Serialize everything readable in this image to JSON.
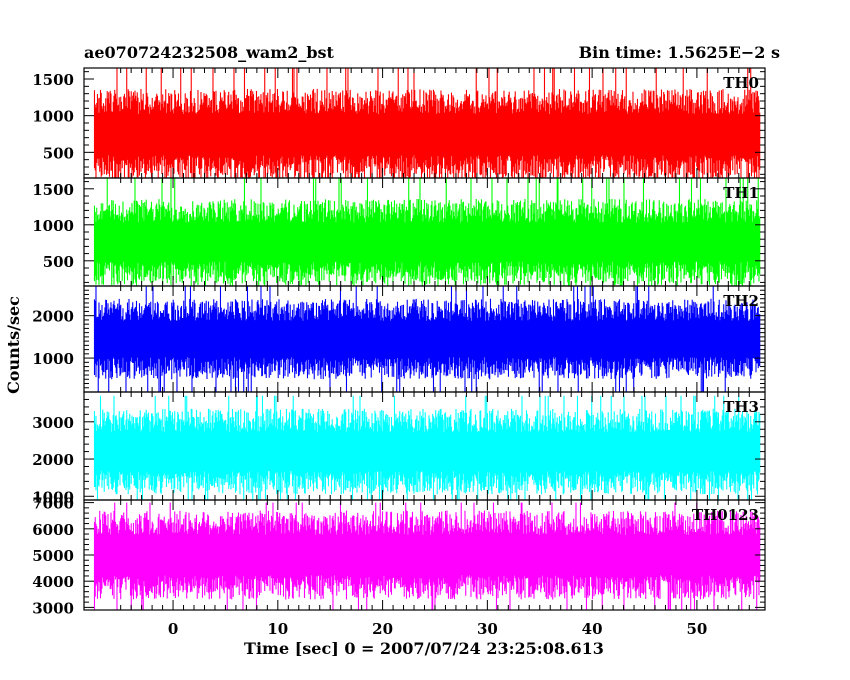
{
  "chart_data": {
    "type": "line",
    "title_left": "ae070724232508_wam2_bst",
    "title_right": "Bin time: 1.5625E−2 s",
    "xlabel": "Time [sec] 0 = 2007/07/24 23:25:08.613",
    "ylabel": "Counts/sec",
    "xlim": [
      -8.5,
      56.5
    ],
    "data_x_range": [
      -7.5,
      56.0
    ],
    "x_ticks": [
      0,
      10,
      20,
      30,
      40,
      50
    ],
    "x_tick_labels": [
      "0",
      "10",
      "20",
      "30",
      "40",
      "50"
    ],
    "bin_time": 0.015625,
    "grid": false,
    "panels": [
      {
        "name": "TH0",
        "color": "#ff0000",
        "ylim": [
          150,
          1650
        ],
        "y_ticks": [
          500,
          1000,
          1500
        ],
        "y_tick_labels": [
          "500",
          "1000",
          "1500"
        ],
        "mean": 740,
        "typical_low": 100,
        "typical_high": 1350,
        "peak": 1650
      },
      {
        "name": "TH1",
        "color": "#00ff00",
        "ylim": [
          150,
          1650
        ],
        "y_ticks": [
          500,
          1000,
          1500
        ],
        "y_tick_labels": [
          "500",
          "1000",
          "1500"
        ],
        "mean": 760,
        "typical_low": 150,
        "typical_high": 1350,
        "peak": 1650
      },
      {
        "name": "TH2",
        "color": "#0000ff",
        "ylim": [
          200,
          2700
        ],
        "y_ticks": [
          1000,
          2000
        ],
        "y_tick_labels": [
          "1000",
          "2000"
        ],
        "mean": 1450,
        "typical_low": 500,
        "typical_high": 2400,
        "peak": 2700
      },
      {
        "name": "TH3",
        "color": "#00ffff",
        "ylim": [
          900,
          3800
        ],
        "y_ticks": [
          1000,
          2000,
          3000
        ],
        "y_tick_labels": [
          "1000",
          "2000",
          "3000"
        ],
        "mean": 2200,
        "typical_low": 1100,
        "typical_high": 3400,
        "peak": 3700
      },
      {
        "name": "TH0123",
        "color": "#ff00ff",
        "ylim": [
          2900,
          7100
        ],
        "y_ticks": [
          3000,
          4000,
          5000,
          6000,
          7000
        ],
        "y_tick_labels": [
          "3000",
          "4000",
          "5000",
          "6000",
          "7000"
        ],
        "mean": 5000,
        "typical_low": 3200,
        "typical_high": 6600,
        "peak": 7000
      }
    ]
  }
}
